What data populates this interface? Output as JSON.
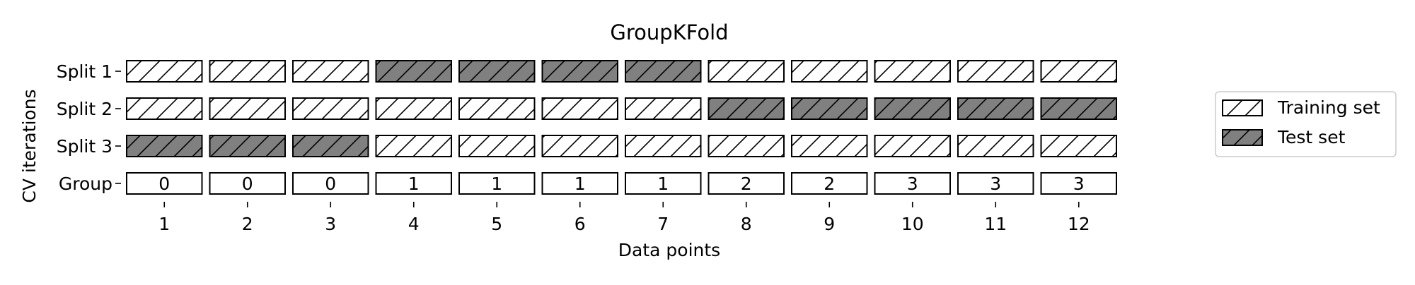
{
  "chart_data": {
    "type": "heatmap",
    "title": "GroupKFold",
    "xlabel": "Data points",
    "ylabel": "CV iterations",
    "x": [
      1,
      2,
      3,
      4,
      5,
      6,
      7,
      8,
      9,
      10,
      11,
      12
    ],
    "rows": [
      {
        "label": "Split 1",
        "kind": "split",
        "values": [
          "train",
          "train",
          "train",
          "test",
          "test",
          "test",
          "test",
          "train",
          "train",
          "train",
          "train",
          "train"
        ]
      },
      {
        "label": "Split 2",
        "kind": "split",
        "values": [
          "train",
          "train",
          "train",
          "train",
          "train",
          "train",
          "train",
          "test",
          "test",
          "test",
          "test",
          "test"
        ]
      },
      {
        "label": "Split 3",
        "kind": "split",
        "values": [
          "test",
          "test",
          "test",
          "train",
          "train",
          "train",
          "train",
          "train",
          "train",
          "train",
          "train",
          "train"
        ]
      },
      {
        "label": "Group",
        "kind": "group",
        "values": [
          0,
          0,
          0,
          1,
          1,
          1,
          1,
          2,
          2,
          3,
          3,
          3
        ]
      }
    ],
    "legend": {
      "position": "right",
      "entries": [
        {
          "key": "train",
          "label": "Training set",
          "fill": "#ffffff",
          "hatch": "//"
        },
        {
          "key": "test",
          "label": "Test set",
          "fill": "#808080",
          "hatch": "//"
        }
      ]
    },
    "colors": {
      "train": "#ffffff",
      "test": "#808080",
      "edge": "#000000"
    }
  }
}
